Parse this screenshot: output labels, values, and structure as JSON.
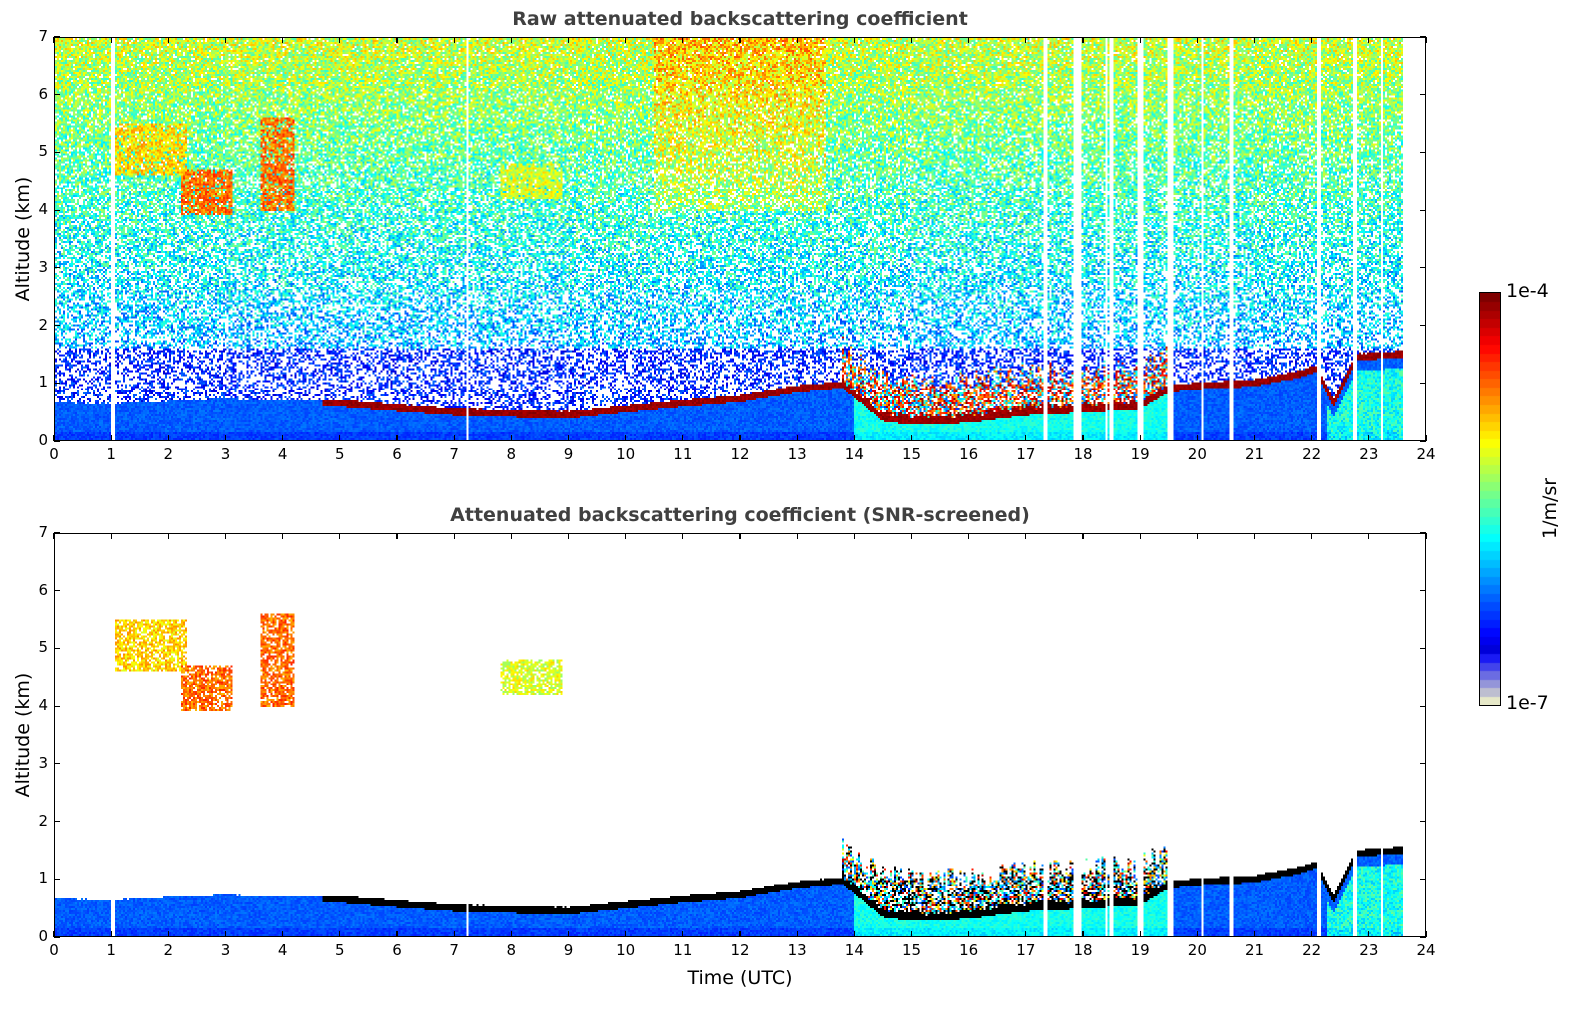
{
  "chart_data": [
    {
      "type": "heatmap",
      "title": "Raw attenuated backscattering coefficient",
      "xlabel": "",
      "ylabel": "Altitude (km)",
      "xlim": [
        0,
        24
      ],
      "ylim": [
        0,
        7
      ],
      "xticks": [
        "0",
        "1",
        "2",
        "3",
        "4",
        "5",
        "6",
        "7",
        "8",
        "9",
        "10",
        "11",
        "12",
        "13",
        "14",
        "15",
        "16",
        "17",
        "18",
        "19",
        "20",
        "21",
        "22",
        "23",
        "24"
      ],
      "yticks": [
        "0",
        "1",
        "2",
        "3",
        "4",
        "5",
        "6",
        "7"
      ],
      "screened": false,
      "data_end_hour": 23.6,
      "noise_description": "speckled signal increasing with altitude; green/yellow noise above 3 km, blue noise 1-2 km",
      "boundary_layer_top_km": [
        [
          0,
          0.65
        ],
        [
          1,
          0.63
        ],
        [
          2,
          0.68
        ],
        [
          3,
          0.72
        ],
        [
          4,
          0.68
        ],
        [
          5,
          0.7
        ],
        [
          6,
          0.62
        ],
        [
          7,
          0.55
        ],
        [
          8,
          0.52
        ],
        [
          9,
          0.5
        ],
        [
          10,
          0.6
        ],
        [
          11,
          0.7
        ],
        [
          12,
          0.78
        ],
        [
          13,
          0.95
        ],
        [
          13.8,
          1.02
        ],
        [
          14.5,
          0.45
        ],
        [
          15,
          0.38
        ],
        [
          16,
          0.42
        ],
        [
          17,
          0.55
        ],
        [
          18,
          0.6
        ],
        [
          19,
          0.65
        ],
        [
          19.5,
          0.95
        ],
        [
          20,
          1.0
        ],
        [
          21,
          1.05
        ],
        [
          21.8,
          1.2
        ],
        [
          22.1,
          1.3
        ],
        [
          22.4,
          0.7
        ],
        [
          22.8,
          1.5
        ],
        [
          23.6,
          1.55
        ]
      ],
      "aerosol_top_layer_start_hour": 4.7,
      "aerosol_top_layer_end_hour": 23.6,
      "turbulent_region_hours": [
        13.8,
        19.5
      ],
      "data_gaps_hours": [
        1.02,
        7.22,
        17.35,
        17.88,
        17.95,
        18.42,
        18.5,
        18.98,
        19.03,
        19.5,
        19.55,
        20.1,
        20.6,
        22.15,
        22.78,
        23.25
      ],
      "cloud_features": [
        {
          "hour_start": 1.0,
          "hour_end": 2.3,
          "alt_base_km": 4.6,
          "alt_top_km": 5.5,
          "intensity": "moderate"
        },
        {
          "hour_start": 2.2,
          "hour_end": 3.1,
          "alt_base_km": 3.9,
          "alt_top_km": 4.7,
          "intensity": "strong"
        },
        {
          "hour_start": 3.6,
          "hour_end": 4.2,
          "alt_base_km": 4.0,
          "alt_top_km": 5.6,
          "intensity": "strong"
        },
        {
          "hour_start": 7.8,
          "hour_end": 8.9,
          "alt_base_km": 4.2,
          "alt_top_km": 4.8,
          "intensity": "weak"
        }
      ]
    },
    {
      "type": "heatmap",
      "title": "Attenuated backscattering coefficient (SNR-screened)",
      "xlabel": "Time (UTC)",
      "ylabel": "Altitude (km)",
      "xlim": [
        0,
        24
      ],
      "ylim": [
        0,
        7
      ],
      "xticks": [
        "0",
        "1",
        "2",
        "3",
        "4",
        "5",
        "6",
        "7",
        "8",
        "9",
        "10",
        "11",
        "12",
        "13",
        "14",
        "15",
        "16",
        "17",
        "18",
        "19",
        "20",
        "21",
        "22",
        "23",
        "24"
      ],
      "yticks": [
        "0",
        "1",
        "2",
        "3",
        "4",
        "5",
        "6",
        "7"
      ],
      "screened": true,
      "saturated_color": "#000000",
      "note": "Low-SNR pixels removed (white); saturated layer top drawn black"
    }
  ],
  "colorbar": {
    "colormap": "jet",
    "scale": "log",
    "min_label": "1e-7",
    "max_label": "1e-4",
    "unit_label": "1/m/sr",
    "min": 1e-07,
    "max": 0.0001
  }
}
